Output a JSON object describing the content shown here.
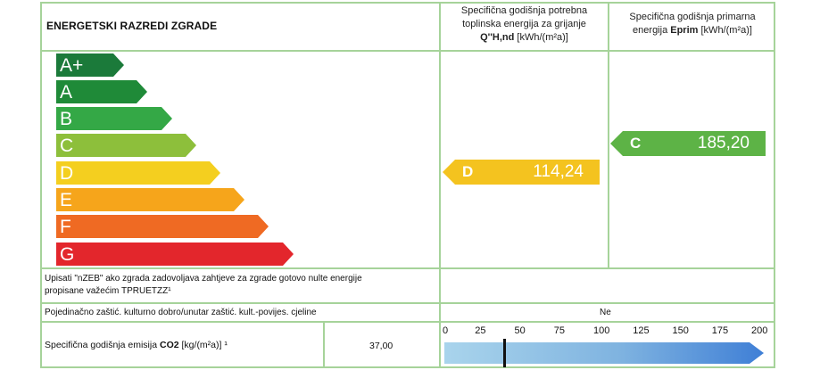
{
  "title": "ENERGETSKI RAZREDI ZGRADE",
  "col1_header": {
    "line1": "Specifična godišnja potrebna",
    "line2": "toplinska energija za grijanje",
    "symbol": "Q''H,nd",
    "unit": "[kWh/(m²a)]"
  },
  "col2_header": {
    "line1": "Specifična godišnja primarna",
    "line2_prefix": "energija",
    "symbol": "Eprim",
    "unit": "[kWh/(m²a)]"
  },
  "classes": [
    {
      "label": "A+",
      "color": "#1b7a3a"
    },
    {
      "label": "A",
      "color": "#1f8a38"
    },
    {
      "label": "B",
      "color": "#34a846"
    },
    {
      "label": "C",
      "color": "#8dbf3b"
    },
    {
      "label": "D",
      "color": "#f4cf1f"
    },
    {
      "label": "E",
      "color": "#f6a51b"
    },
    {
      "label": "F",
      "color": "#ef6a23"
    },
    {
      "label": "G",
      "color": "#e3262c"
    }
  ],
  "heating_indicator": {
    "class": "D",
    "value": "114,24",
    "color": "#f4c31f"
  },
  "primary_indicator": {
    "class": "C",
    "value": "185,20",
    "color": "#5db346"
  },
  "nzeb": {
    "line1": "Upisati \"nZEB\" ako zgrada zadovoljava zahtjeve za zgrade gotovo nulte energije",
    "line2": "propisane važećim TPRUETZZ¹"
  },
  "cultural": {
    "label": "Pojedinačno zaštić. kulturno dobro/unutar zaštić. kult.-povijes. cjeline",
    "value": "Ne"
  },
  "emission": {
    "label_prefix": "Specifična godišnja emisija",
    "symbol": "CO2",
    "unit": "[kg/(m²a)] ¹",
    "value": "37,00",
    "scale_ticks": [
      "0",
      "25",
      "50",
      "75",
      "100",
      "125",
      "150",
      "175",
      "200"
    ],
    "marker_fraction": 0.185
  }
}
